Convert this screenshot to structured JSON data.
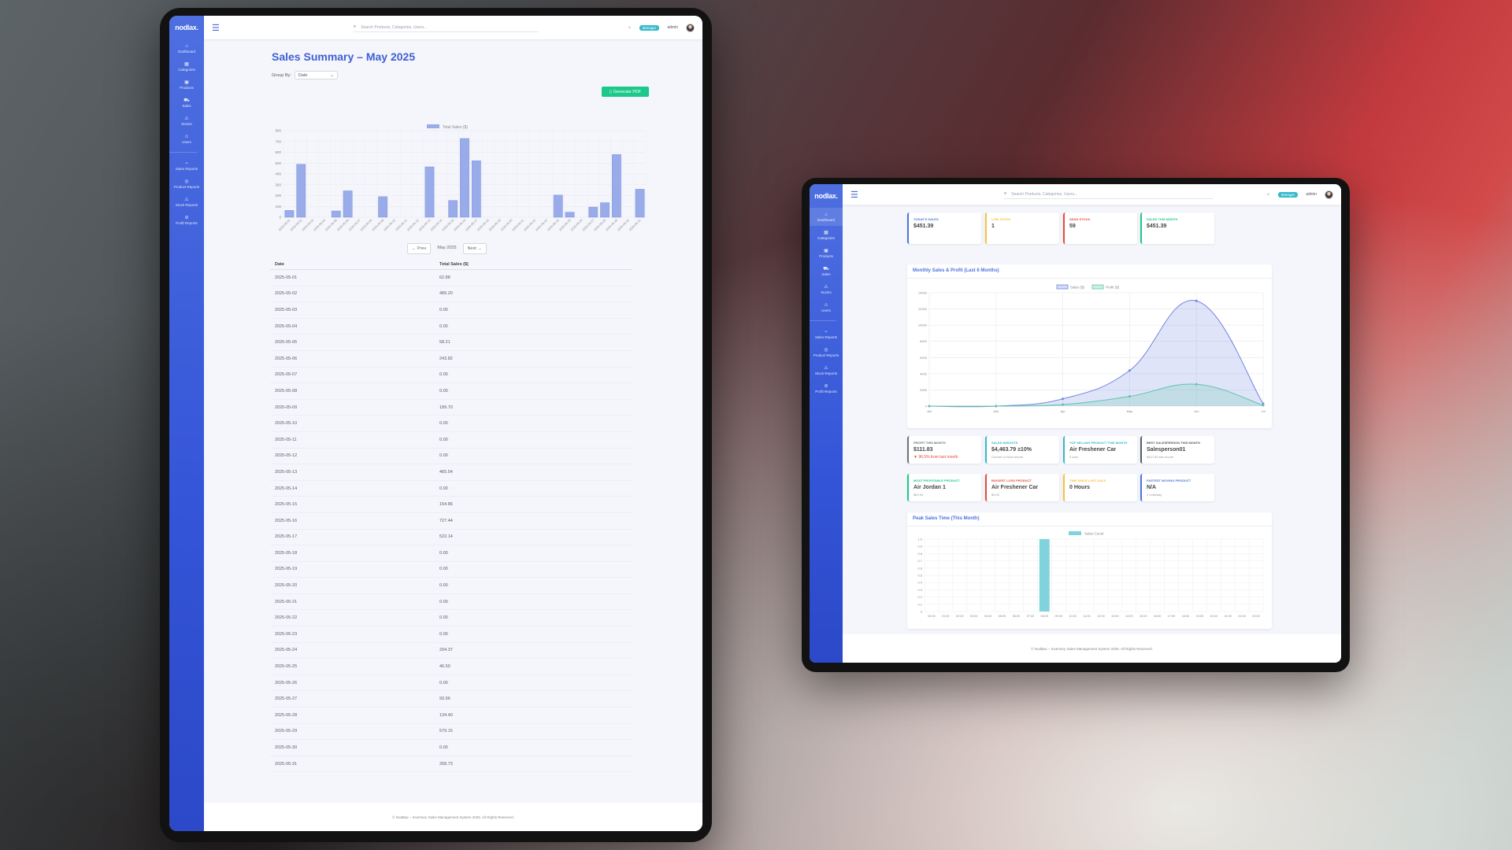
{
  "brand": "nodlax.",
  "search_placeholder": "Search Products, Categories, Users...",
  "role_badge": "Manager",
  "user_name": "admin",
  "sidebar_left": [
    {
      "icon": "dashboard-icon",
      "glyph": "⌂",
      "label": "Dashboard"
    },
    {
      "icon": "categories-icon",
      "glyph": "▦",
      "label": "Categories"
    },
    {
      "icon": "products-icon",
      "glyph": "▣",
      "label": "Products"
    },
    {
      "icon": "sales-icon",
      "glyph": "⛟",
      "label": "Sales"
    },
    {
      "icon": "stocks-icon",
      "glyph": "⚠",
      "label": "Stocks"
    },
    {
      "icon": "users-icon",
      "glyph": "☺",
      "label": "Users"
    },
    {
      "icon": "sales-reports-icon",
      "glyph": "⌁",
      "label": "Sales Reports"
    },
    {
      "icon": "product-reports-icon",
      "glyph": "◎",
      "label": "Product Reports"
    },
    {
      "icon": "stock-reports-icon",
      "glyph": "⚠",
      "label": "Stock Reports"
    },
    {
      "icon": "profit-reports-icon",
      "glyph": "⊘",
      "label": "Profit Reports"
    }
  ],
  "left_page": {
    "title": "Sales Summary – May 2025",
    "group_by_label": "Group By:",
    "group_by_value": "Date",
    "pdf_button": "Generate PDF",
    "prev_label": "← Prev",
    "month_label": "May 2025",
    "next_label": "Next →",
    "table_headers": [
      "Date",
      "Total Sales ($)"
    ],
    "footer": "© NodBax – Inventory Sales Management System 2025. All Rights Reserved."
  },
  "right_page": {
    "stat_cards": [
      {
        "label": "TODAY'S SALES",
        "value": "$451.39",
        "color": "#4e73df"
      },
      {
        "label": "LOW STOCK",
        "value": "1",
        "color": "#f6c23e"
      },
      {
        "label": "DEAD STOCK",
        "value": "59",
        "color": "#e74a3b"
      },
      {
        "label": "SALES THIS MONTH",
        "value": "$451.39",
        "color": "#1cc88a"
      }
    ],
    "monthly_title": "Monthly Sales & Profit (Last 6 Months)",
    "info_cards_row1": [
      {
        "label": "PROFIT THIS MONTH",
        "value": "$111.83",
        "sub": "▼ 96.5% from last month",
        "color": "#6c757d",
        "sub_red": true
      },
      {
        "label": "SALES INSIGHTS",
        "value": "$4,463.79 ±10%",
        "sub": "Current vs Next Month",
        "color": "#36b9cc",
        "sub_red": false
      },
      {
        "label": "TOP SELLING PRODUCT THIS MONTH",
        "value": "Air Freshener Car",
        "sub": "3 sold",
        "color": "#36b9cc",
        "sub_red": false
      },
      {
        "label": "BEST SALESPERSON THIS MONTH",
        "value": "Salesperson01",
        "sub": "$427.83 this month",
        "color": "#5a5c69",
        "sub_red": false
      }
    ],
    "info_cards_row2": [
      {
        "label": "MOST PROFITABLE PRODUCT",
        "value": "Air Jordan 1",
        "sub": "$60.00",
        "color": "#1cc88a"
      },
      {
        "label": "BIGGEST LOSS PRODUCT",
        "value": "Air Freshener Car",
        "sub": "$9.00",
        "color": "#e74a3b"
      },
      {
        "label": "TIME SINCE LAST SALE",
        "value": "0 Hours",
        "sub": "",
        "color": "#f6c23e"
      },
      {
        "label": "FASTEST MOVING PRODUCT",
        "value": "N/A",
        "sub": "0 units/day",
        "color": "#4e73df"
      }
    ],
    "peak_title": "Peak Sales Time (This Month)",
    "footer": "© NodBax – Inventory Sales Management System 2025. All Rights Reserved."
  },
  "chart_data": [
    {
      "type": "bar",
      "title": "",
      "legend": [
        "Total Sales ($)"
      ],
      "categories": [
        "2025-05-01",
        "2025-05-02",
        "2025-05-03",
        "2025-05-04",
        "2025-05-05",
        "2025-05-06",
        "2025-05-07",
        "2025-05-08",
        "2025-05-09",
        "2025-05-10",
        "2025-05-11",
        "2025-05-12",
        "2025-05-13",
        "2025-05-14",
        "2025-05-15",
        "2025-05-16",
        "2025-05-17",
        "2025-05-18",
        "2025-05-19",
        "2025-05-20",
        "2025-05-21",
        "2025-05-22",
        "2025-05-23",
        "2025-05-24",
        "2025-05-25",
        "2025-05-26",
        "2025-05-27",
        "2025-05-28",
        "2025-05-29",
        "2025-05-30",
        "2025-05-31"
      ],
      "values": [
        62.88,
        489.2,
        0,
        0,
        58.21,
        243.82,
        0,
        0,
        189.7,
        0,
        0,
        0,
        465.54,
        0,
        154.86,
        727.44,
        522.14,
        0,
        0,
        0,
        0,
        0,
        0,
        204.37,
        46.5,
        0,
        93.96,
        134.4,
        579.15,
        0,
        258.73
      ],
      "display": [
        "62.88",
        "489.20",
        "0.00",
        "0.00",
        "58.21",
        "243.82",
        "0.00",
        "0.00",
        "189.70",
        "0.00",
        "0.00",
        "0.00",
        "465.54",
        "0.00",
        "154.86",
        "727.44",
        "522.14",
        "0.00",
        "0.00",
        "0.00",
        "0.00",
        "0.00",
        "0.00",
        "204.37",
        "46.50",
        "0.00",
        "93.96",
        "134.40",
        "579.15",
        "0.00",
        "258.73"
      ],
      "ylim": [
        0,
        800
      ],
      "yticks": [
        0,
        100,
        200,
        300,
        400,
        500,
        600,
        700,
        800
      ],
      "color": "#9aabea"
    },
    {
      "type": "area",
      "title": "Monthly Sales & Profit (Last 6 Months)",
      "categories": [
        "Jan",
        "Mar",
        "Apr",
        "May",
        "Jun",
        "Jul"
      ],
      "series": [
        {
          "name": "Sales ($)",
          "values": [
            0,
            0,
            900,
            4400,
            13000,
            300
          ],
          "color": "#6f86e0"
        },
        {
          "name": "Profit ($)",
          "values": [
            0,
            0,
            200,
            1200,
            2700,
            100
          ],
          "color": "#5cc6a7"
        }
      ],
      "ylim": [
        0,
        14000
      ],
      "yticks": [
        0,
        2000,
        4000,
        6000,
        8000,
        10000,
        12000,
        14000
      ]
    },
    {
      "type": "bar",
      "title": "Peak Sales Time (This Month)",
      "legend": [
        "Sales Count"
      ],
      "categories": [
        "00:00",
        "01:00",
        "02:00",
        "03:00",
        "04:00",
        "05:00",
        "06:00",
        "07:00",
        "08:00",
        "09:00",
        "10:00",
        "11:00",
        "12:00",
        "13:00",
        "14:00",
        "15:00",
        "16:00",
        "17:00",
        "18:00",
        "19:00",
        "20:00",
        "21:00",
        "22:00",
        "23:00"
      ],
      "values": [
        0,
        0,
        0,
        0,
        0,
        0,
        0,
        0,
        1,
        0,
        0,
        0,
        0,
        0,
        0,
        0,
        0,
        0,
        0,
        0,
        0,
        0,
        0,
        0
      ],
      "ylim": [
        0,
        1
      ],
      "yticks": [
        "0",
        "0.1",
        "0.2",
        "0.3",
        "0.4",
        "0.5",
        "0.6",
        "0.7",
        "0.8",
        "0.9",
        "1.0"
      ],
      "color": "#7fd3dd"
    }
  ]
}
